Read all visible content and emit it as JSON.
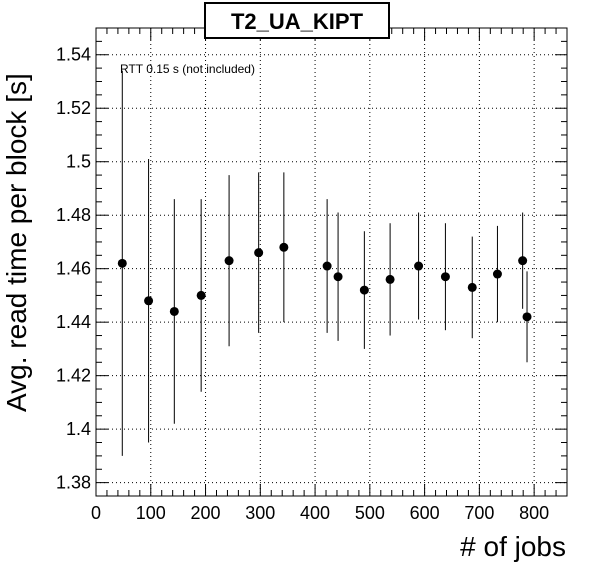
{
  "chart_data": {
    "type": "scatter",
    "title": "T2_UA_KIPT",
    "xlabel": "# of jobs",
    "ylabel": "Avg. read time per block [s]",
    "annotation": "RTT 0.15 s (not included)",
    "xlim": [
      0,
      860
    ],
    "ylim": [
      1.375,
      1.55
    ],
    "x_ticks": [
      0,
      100,
      200,
      300,
      400,
      500,
      600,
      700,
      800
    ],
    "y_ticks": [
      1.38,
      1.4,
      1.42,
      1.44,
      1.46,
      1.48,
      1.5,
      1.52,
      1.54
    ],
    "y_tick_labels": [
      "1.38",
      "1.4",
      "1.42",
      "1.44",
      "1.46",
      "1.48",
      "1.5",
      "1.52",
      "1.54"
    ],
    "grid": true,
    "points": [
      {
        "x": 48,
        "y": 1.462,
        "err": 0.072
      },
      {
        "x": 96,
        "y": 1.448,
        "err": 0.053
      },
      {
        "x": 143,
        "y": 1.444,
        "err": 0.042
      },
      {
        "x": 192,
        "y": 1.45,
        "err": 0.036
      },
      {
        "x": 243,
        "y": 1.463,
        "err": 0.032
      },
      {
        "x": 297,
        "y": 1.466,
        "err": 0.03
      },
      {
        "x": 343,
        "y": 1.468,
        "err": 0.028
      },
      {
        "x": 422,
        "y": 1.461,
        "err": 0.025
      },
      {
        "x": 442,
        "y": 1.457,
        "err": 0.024
      },
      {
        "x": 490,
        "y": 1.452,
        "err": 0.022
      },
      {
        "x": 537,
        "y": 1.456,
        "err": 0.021
      },
      {
        "x": 589,
        "y": 1.461,
        "err": 0.02
      },
      {
        "x": 638,
        "y": 1.457,
        "err": 0.02
      },
      {
        "x": 687,
        "y": 1.453,
        "err": 0.019
      },
      {
        "x": 733,
        "y": 1.458,
        "err": 0.018
      },
      {
        "x": 779,
        "y": 1.463,
        "err": 0.018
      },
      {
        "x": 787,
        "y": 1.442,
        "err": 0.017
      }
    ]
  }
}
